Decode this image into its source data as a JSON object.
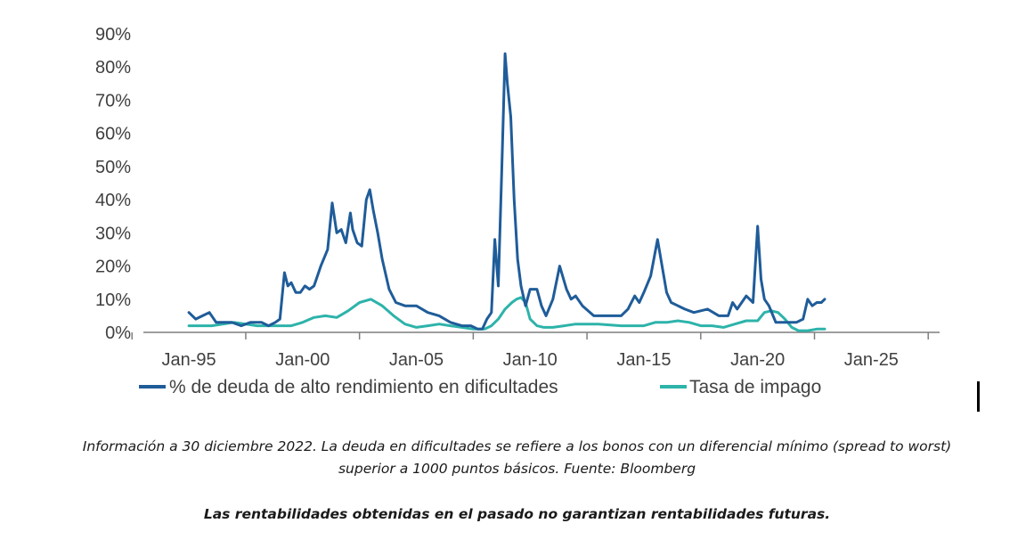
{
  "chart_data": {
    "type": "line",
    "title": "",
    "xlabel": "",
    "ylabel": "",
    "x_range": [
      1993.0,
      2028.0
    ],
    "ylim": [
      0,
      90
    ],
    "y_ticks": [
      "0%",
      "10%",
      "20%",
      "30%",
      "40%",
      "50%",
      "60%",
      "70%",
      "80%",
      "90%"
    ],
    "y_tick_values": [
      0,
      10,
      20,
      30,
      40,
      50,
      60,
      70,
      80,
      90
    ],
    "x_ticks": [
      "Jan-95",
      "Jan-00",
      "Jan-05",
      "Jan-10",
      "Jan-15",
      "Jan-20",
      "Jan-25"
    ],
    "x_tick_values": [
      1995,
      2000,
      2005,
      2010,
      2015,
      2020,
      2025
    ],
    "legend_position": "bottom",
    "series": [
      {
        "name": "% de deuda de alto rendimiento en dificultades",
        "color": "#1f5c99",
        "x": [
          1995.0,
          1995.3,
          1995.6,
          1995.9,
          1996.2,
          1996.5,
          1996.9,
          1997.3,
          1997.7,
          1998.2,
          1998.5,
          1998.8,
          1999.0,
          1999.2,
          1999.35,
          1999.5,
          1999.7,
          1999.9,
          2000.1,
          2000.3,
          2000.5,
          2000.8,
          2001.1,
          2001.3,
          2001.5,
          2001.7,
          2001.9,
          2002.1,
          2002.2,
          2002.4,
          2002.6,
          2002.8,
          2002.95,
          2003.1,
          2003.3,
          2003.5,
          2003.8,
          2004.1,
          2004.5,
          2005.0,
          2005.5,
          2006.0,
          2006.5,
          2007.0,
          2007.4,
          2007.7,
          2007.9,
          2008.1,
          2008.3,
          2008.45,
          2008.6,
          2008.75,
          2008.9,
          2009.0,
          2009.15,
          2009.3,
          2009.45,
          2009.6,
          2009.8,
          2010.0,
          2010.3,
          2010.5,
          2010.7,
          2011.0,
          2011.3,
          2011.6,
          2011.8,
          2012.0,
          2012.3,
          2012.8,
          2013.5,
          2014.0,
          2014.3,
          2014.6,
          2014.8,
          2015.0,
          2015.3,
          2015.6,
          2015.8,
          2016.0,
          2016.2,
          2016.5,
          2016.8,
          2017.2,
          2017.8,
          2018.3,
          2018.7,
          2018.9,
          2019.1,
          2019.3,
          2019.5,
          2019.8,
          2020.0,
          2020.15,
          2020.3,
          2020.5,
          2020.8,
          2021.0,
          2021.3,
          2021.7,
          2022.0,
          2022.2,
          2022.4,
          2022.6,
          2022.8,
          2022.95
        ],
        "values": [
          6,
          4,
          5,
          6,
          3,
          3,
          3,
          2,
          3,
          3,
          2,
          3,
          4,
          18,
          14,
          15,
          12,
          12,
          14,
          13,
          14,
          20,
          25,
          39,
          30,
          31,
          27,
          36,
          31,
          27,
          26,
          40,
          43,
          37,
          30,
          22,
          13,
          9,
          8,
          8,
          6,
          5,
          3,
          2,
          2,
          1,
          1,
          4,
          6,
          28,
          14,
          48,
          84,
          75,
          65,
          40,
          22,
          14,
          8,
          13,
          13,
          8,
          5,
          10,
          20,
          13,
          10,
          11,
          8,
          5,
          5,
          5,
          7,
          11,
          9,
          12,
          17,
          28,
          20,
          12,
          9,
          8,
          7,
          6,
          7,
          5,
          5,
          9,
          7,
          9,
          11,
          9,
          32,
          16,
          10,
          8,
          3,
          3,
          3,
          3,
          4,
          10,
          8,
          9,
          9,
          10
        ]
      },
      {
        "name": "Tasa de impago",
        "color": "#2db3aa",
        "x": [
          1995.0,
          1996.0,
          1997.0,
          1998.0,
          1999.0,
          1999.5,
          2000.0,
          2000.5,
          2001.0,
          2001.5,
          2002.0,
          2002.5,
          2003.0,
          2003.5,
          2004.0,
          2004.5,
          2005.0,
          2005.5,
          2006.0,
          2006.5,
          2007.0,
          2007.5,
          2008.0,
          2008.3,
          2008.6,
          2008.9,
          2009.2,
          2009.4,
          2009.6,
          2009.8,
          2010.0,
          2010.3,
          2010.6,
          2011.0,
          2011.5,
          2012.0,
          2012.5,
          2013.0,
          2014.0,
          2014.5,
          2015.0,
          2015.5,
          2016.0,
          2016.5,
          2017.0,
          2017.5,
          2018.0,
          2018.5,
          2019.0,
          2019.5,
          2020.0,
          2020.3,
          2020.6,
          2020.9,
          2021.2,
          2021.5,
          2021.8,
          2022.2,
          2022.6,
          2022.95
        ],
        "values": [
          2,
          2,
          3,
          2,
          2,
          2,
          3,
          4.5,
          5,
          4.5,
          6.5,
          9,
          10,
          8,
          5,
          2.5,
          1.5,
          2,
          2.5,
          2,
          1.5,
          1,
          1,
          2,
          4,
          7,
          9,
          10,
          10.5,
          9,
          4,
          2,
          1.5,
          1.5,
          2,
          2.5,
          2.5,
          2.5,
          2,
          2,
          2,
          3,
          3,
          3.5,
          3,
          2,
          2,
          1.5,
          2.5,
          3.5,
          3.5,
          6,
          6.5,
          6,
          4,
          1.5,
          0.5,
          0.5,
          1,
          1
        ]
      }
    ]
  },
  "captions": {
    "note_line1": "Información a 30 diciembre 2022. La deuda en dificultades se refiere a los bonos con un diferencial mínimo (spread to worst)",
    "note_line2": "superior a 1000 puntos básicos. Fuente: Bloomberg",
    "disclaimer": "Las rentabilidades obtenidas en el pasado no garantizan rentabilidades futuras."
  }
}
